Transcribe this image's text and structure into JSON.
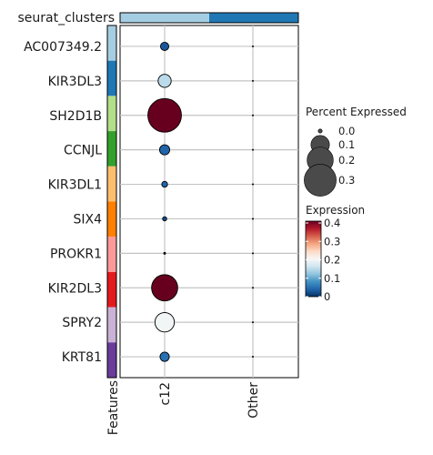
{
  "chart_data": {
    "type": "dotplot",
    "title": "",
    "top_annotation_label": "seurat_clusters",
    "left_annotation_label": "Features",
    "top_annotation_colors": [
      "#a6cee3",
      "#1f78b4"
    ],
    "feature_colors": [
      "#a6cee3",
      "#1f78b4",
      "#b2df8a",
      "#33a02c",
      "#fdbf6f",
      "#ff7f00",
      "#fb9a99",
      "#e31a1c",
      "#cab2d6",
      "#6a3d9a"
    ],
    "columns": [
      "c12",
      "Other"
    ],
    "rows": [
      "AC007349.2",
      "KIR3DL3",
      "SH2D1B",
      "CCNJL",
      "KIR3DL1",
      "SIX4",
      "PROKR1",
      "KIR2DL3",
      "SPRY2",
      "KRT81"
    ],
    "percent_expressed": [
      [
        0.02,
        0.0
      ],
      [
        0.05,
        0.0
      ],
      [
        0.33,
        0.0
      ],
      [
        0.03,
        0.0
      ],
      [
        0.01,
        0.0
      ],
      [
        0.005,
        0.0
      ],
      [
        0.001,
        0.0
      ],
      [
        0.2,
        0.0
      ],
      [
        0.11,
        0.0
      ],
      [
        0.025,
        0.0
      ]
    ],
    "expression": [
      [
        0.03,
        0.0
      ],
      [
        0.15,
        0.0
      ],
      [
        0.41,
        0.0
      ],
      [
        0.04,
        0.0
      ],
      [
        0.04,
        0.0
      ],
      [
        0.02,
        0.0
      ],
      [
        0.0,
        0.0
      ],
      [
        0.41,
        0.0
      ],
      [
        0.2,
        0.0
      ],
      [
        0.05,
        0.0
      ]
    ],
    "size_legend": {
      "title": "Percent Expressed",
      "labels": [
        "0.0",
        "0.1",
        "0.2",
        "0.3"
      ],
      "values": [
        0.0,
        0.1,
        0.2,
        0.3
      ]
    },
    "color_legend": {
      "title": "Expression",
      "ticks": [
        "0.4",
        "0.3",
        "0.2",
        "0.1",
        "0"
      ],
      "tick_values": [
        0.4,
        0.3,
        0.2,
        0.1,
        0.0
      ],
      "range": [
        0,
        0.41
      ]
    },
    "colormap": [
      "#053061",
      "#2166ac",
      "#4393c3",
      "#92c5de",
      "#d1e5f0",
      "#f7f7f7",
      "#fddbc7",
      "#f4a582",
      "#d6604d",
      "#b2182b",
      "#67001f"
    ],
    "grid": true
  }
}
